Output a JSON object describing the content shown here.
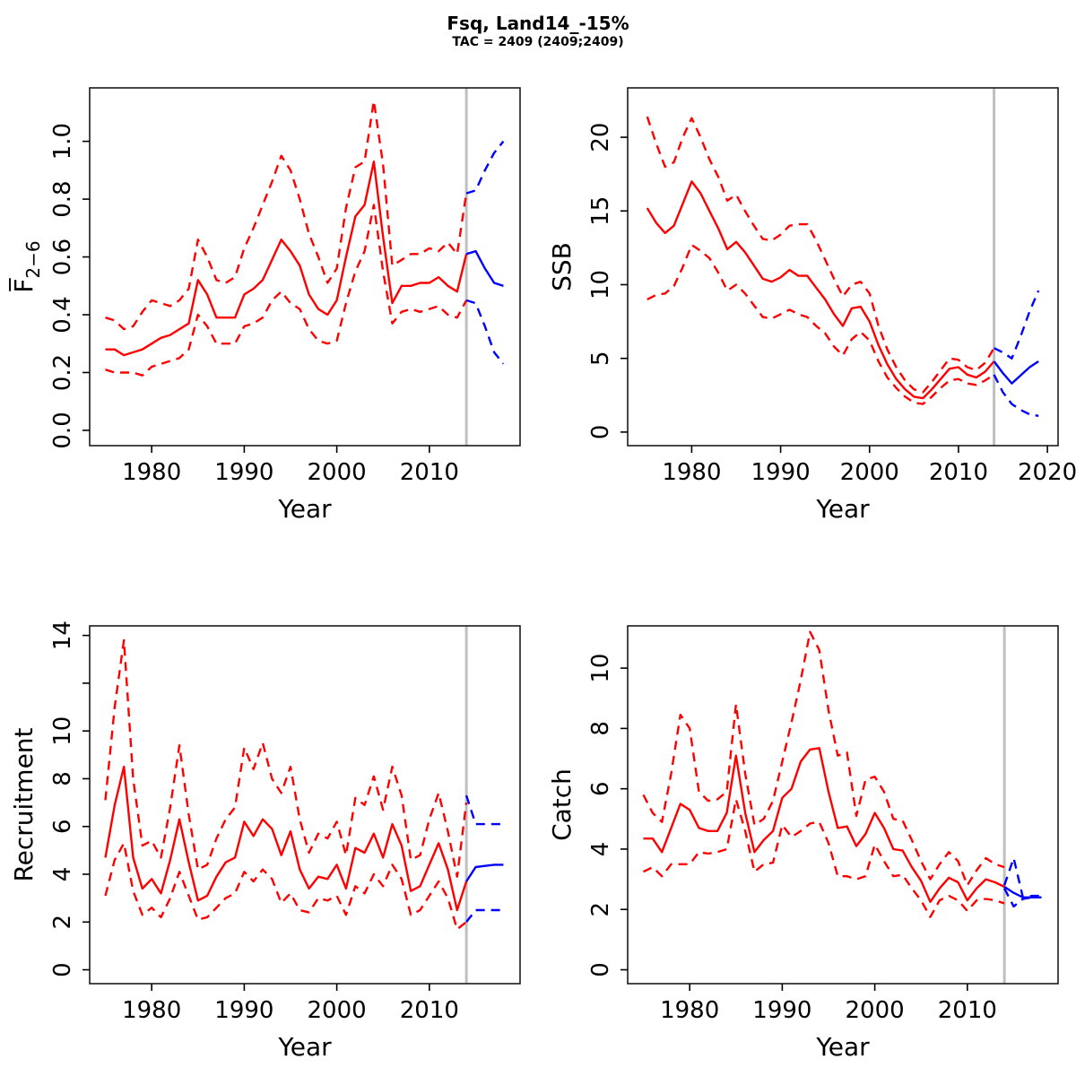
{
  "header": {
    "title": "Fsq, Land14_-15%",
    "subtitle": "TAC = 2409 (2409;2409)"
  },
  "colors": {
    "historical": "#FF0000",
    "projection": "#0000FF",
    "divider": "#BFBFBF",
    "axis": "#000000",
    "box": "#1A1A1A"
  },
  "chart_data": [
    {
      "id": "f",
      "type": "line",
      "ylabel": "F̅2−6",
      "ylabel_main": "F̅",
      "ylabel_sub": "2−6",
      "xlabel": "Year",
      "xlim": [
        1973.3,
        2019.8
      ],
      "ylim": [
        -0.053,
        1.185
      ],
      "xticks": [
        1980,
        1990,
        2000,
        2010
      ],
      "yticks": [
        {
          "v": 0.0,
          "label": "0.0"
        },
        {
          "v": 0.2,
          "label": "0.2"
        },
        {
          "v": 0.4,
          "label": "0.4"
        },
        {
          "v": 0.6,
          "label": "0.6"
        },
        {
          "v": 0.8,
          "label": "0.8"
        },
        {
          "v": 1.0,
          "label": "1.0"
        }
      ],
      "divider_year": 2014,
      "series": [
        {
          "name": "median-historical",
          "color": "historical",
          "dash": false,
          "year_start": 1975,
          "values": [
            0.28,
            0.28,
            0.26,
            0.27,
            0.28,
            0.3,
            0.32,
            0.33,
            0.35,
            0.37,
            0.52,
            0.47,
            0.39,
            0.39,
            0.39,
            0.47,
            0.49,
            0.52,
            0.59,
            0.66,
            0.62,
            0.57,
            0.47,
            0.42,
            0.4,
            0.45,
            0.6,
            0.74,
            0.78,
            0.93,
            0.67,
            0.44,
            0.5,
            0.5,
            0.51,
            0.51,
            0.53,
            0.5,
            0.48,
            0.61
          ]
        },
        {
          "name": "ci-upper-historical",
          "color": "historical",
          "dash": true,
          "year_start": 1975,
          "values": [
            0.39,
            0.38,
            0.35,
            0.36,
            0.41,
            0.45,
            0.44,
            0.43,
            0.45,
            0.49,
            0.66,
            0.6,
            0.52,
            0.51,
            0.53,
            0.63,
            0.7,
            0.78,
            0.86,
            0.95,
            0.9,
            0.8,
            0.68,
            0.6,
            0.51,
            0.56,
            0.77,
            0.91,
            0.93,
            1.14,
            0.92,
            0.57,
            0.59,
            0.61,
            0.61,
            0.63,
            0.62,
            0.65,
            0.61,
            0.82
          ]
        },
        {
          "name": "ci-lower-historical",
          "color": "historical",
          "dash": true,
          "year_start": 1975,
          "values": [
            0.21,
            0.2,
            0.2,
            0.2,
            0.19,
            0.22,
            0.23,
            0.24,
            0.25,
            0.28,
            0.4,
            0.36,
            0.3,
            0.3,
            0.3,
            0.36,
            0.37,
            0.39,
            0.45,
            0.48,
            0.44,
            0.42,
            0.35,
            0.31,
            0.3,
            0.31,
            0.44,
            0.55,
            0.62,
            0.78,
            0.55,
            0.37,
            0.41,
            0.42,
            0.41,
            0.42,
            0.43,
            0.4,
            0.39,
            0.45
          ]
        },
        {
          "name": "median-projection",
          "color": "projection",
          "dash": false,
          "year_start": 2014,
          "values": [
            0.61,
            0.62,
            0.56,
            0.51,
            0.5
          ]
        },
        {
          "name": "ci-upper-projection",
          "color": "projection",
          "dash": true,
          "year_start": 2014,
          "values": [
            0.82,
            0.83,
            0.9,
            0.96,
            1.0
          ]
        },
        {
          "name": "ci-lower-projection",
          "color": "projection",
          "dash": true,
          "year_start": 2014,
          "values": [
            0.45,
            0.44,
            0.36,
            0.27,
            0.23
          ]
        }
      ]
    },
    {
      "id": "ssb",
      "type": "line",
      "ylabel": "SSB",
      "xlabel": "Year",
      "xlim": [
        1972.8,
        2021.2
      ],
      "ylim": [
        -0.92,
        23.35
      ],
      "xticks": [
        1980,
        1990,
        2000,
        2010,
        2020
      ],
      "yticks": [
        {
          "v": 0,
          "label": "0"
        },
        {
          "v": 5,
          "label": "5"
        },
        {
          "v": 10,
          "label": "10"
        },
        {
          "v": 15,
          "label": "15"
        },
        {
          "v": 20,
          "label": "20"
        }
      ],
      "divider_year": 2014,
      "series": [
        {
          "name": "median-historical",
          "color": "historical",
          "dash": false,
          "year_start": 1975,
          "values": [
            15.2,
            14.2,
            13.5,
            14.0,
            15.5,
            17.0,
            16.2,
            15.0,
            13.8,
            12.4,
            12.9,
            12.2,
            11.3,
            10.4,
            10.2,
            10.5,
            11.0,
            10.6,
            10.6,
            9.8,
            9.0,
            8.0,
            7.2,
            8.4,
            8.5,
            7.5,
            5.9,
            4.6,
            3.6,
            2.9,
            2.4,
            2.3,
            2.9,
            3.6,
            4.3,
            4.4,
            3.9,
            3.7,
            4.1,
            4.8
          ]
        },
        {
          "name": "ci-upper-historical",
          "color": "historical",
          "dash": true,
          "year_start": 1975,
          "values": [
            21.4,
            19.6,
            18.0,
            18.3,
            20.0,
            21.3,
            20.0,
            18.5,
            17.3,
            15.7,
            16.1,
            15.0,
            14.0,
            13.1,
            13.0,
            13.4,
            14.0,
            14.1,
            14.1,
            13.0,
            11.7,
            10.4,
            9.2,
            10.0,
            10.2,
            9.4,
            7.2,
            5.6,
            4.4,
            3.5,
            2.9,
            2.7,
            3.4,
            4.2,
            5.0,
            4.9,
            4.4,
            4.2,
            4.7,
            5.7
          ]
        },
        {
          "name": "ci-lower-historical",
          "color": "historical",
          "dash": true,
          "year_start": 1975,
          "values": [
            9.0,
            9.3,
            9.4,
            9.9,
            11.2,
            12.7,
            12.3,
            11.8,
            10.8,
            9.6,
            10.0,
            9.4,
            8.6,
            7.8,
            7.7,
            8.0,
            8.3,
            8.0,
            7.8,
            7.2,
            6.7,
            5.8,
            5.2,
            6.3,
            6.8,
            6.2,
            4.8,
            3.7,
            3.0,
            2.4,
            2.0,
            1.9,
            2.4,
            3.0,
            3.5,
            3.6,
            3.3,
            3.2,
            3.5,
            3.9
          ]
        },
        {
          "name": "median-projection",
          "color": "projection",
          "dash": false,
          "year_start": 2014,
          "values": [
            4.8,
            4.0,
            3.3,
            3.85,
            4.4,
            4.8
          ]
        },
        {
          "name": "ci-upper-projection",
          "color": "projection",
          "dash": true,
          "year_start": 2014,
          "values": [
            5.7,
            5.4,
            5.0,
            6.5,
            8.2,
            9.6
          ]
        },
        {
          "name": "ci-lower-projection",
          "color": "projection",
          "dash": true,
          "year_start": 2014,
          "values": [
            3.9,
            2.7,
            1.9,
            1.5,
            1.2,
            1.1
          ]
        }
      ]
    },
    {
      "id": "recruitment",
      "type": "line",
      "ylabel": "Recruitment",
      "xlabel": "Year",
      "xlim": [
        1973.3,
        2019.8
      ],
      "ylim": [
        -0.58,
        14.4
      ],
      "xticks": [
        1980,
        1990,
        2000,
        2010
      ],
      "yticks": [
        {
          "v": 0,
          "label": "0"
        },
        {
          "v": 2,
          "label": "2"
        },
        {
          "v": 4,
          "label": "4"
        },
        {
          "v": 6,
          "label": "6"
        },
        {
          "v": 8,
          "label": "8"
        },
        {
          "v": 10,
          "label": "10"
        },
        {
          "v": 12,
          "label": ""
        },
        {
          "v": 14,
          "label": "14"
        }
      ],
      "divider_year": 2014,
      "series": [
        {
          "name": "median-historical",
          "color": "historical",
          "dash": false,
          "year_start": 1975,
          "values": [
            4.7,
            6.9,
            8.5,
            4.7,
            3.4,
            3.8,
            3.2,
            4.6,
            6.3,
            4.5,
            2.9,
            3.1,
            3.9,
            4.5,
            4.7,
            6.2,
            5.6,
            6.3,
            5.9,
            4.8,
            5.8,
            4.2,
            3.4,
            3.9,
            3.8,
            4.4,
            3.4,
            5.1,
            4.9,
            5.7,
            4.7,
            6.1,
            5.2,
            3.3,
            3.5,
            4.4,
            5.3,
            4.2,
            2.5,
            3.7
          ]
        },
        {
          "name": "ci-upper-historical",
          "color": "historical",
          "dash": true,
          "year_start": 1975,
          "values": [
            7.1,
            11.0,
            13.8,
            8.0,
            5.2,
            5.4,
            4.7,
            6.8,
            9.4,
            6.5,
            4.2,
            4.4,
            5.5,
            6.3,
            6.8,
            9.3,
            8.4,
            9.5,
            8.0,
            7.4,
            8.5,
            6.3,
            4.9,
            5.7,
            5.5,
            6.2,
            4.8,
            7.2,
            6.9,
            8.1,
            6.7,
            8.5,
            7.3,
            4.6,
            4.8,
            6.3,
            7.4,
            5.8,
            3.9,
            7.0
          ]
        },
        {
          "name": "ci-lower-historical",
          "color": "historical",
          "dash": true,
          "year_start": 1975,
          "values": [
            3.1,
            4.6,
            5.3,
            3.3,
            2.3,
            2.6,
            2.2,
            3.0,
            4.1,
            3.1,
            2.1,
            2.2,
            2.6,
            3.0,
            3.2,
            4.1,
            3.7,
            4.2,
            3.8,
            2.8,
            3.2,
            2.5,
            2.4,
            3.0,
            2.9,
            3.1,
            2.3,
            3.5,
            3.2,
            4.0,
            3.5,
            4.4,
            3.8,
            2.3,
            2.5,
            3.1,
            3.7,
            3.0,
            1.7,
            2.0
          ]
        },
        {
          "name": "median-projection",
          "color": "projection",
          "dash": false,
          "year_start": 2014,
          "values": [
            3.7,
            4.3,
            4.35,
            4.4,
            4.4
          ]
        },
        {
          "name": "ci-upper-projection",
          "color": "projection",
          "dash": true,
          "year_start": 2014,
          "values": [
            7.3,
            6.1,
            6.1,
            6.1,
            6.1
          ]
        },
        {
          "name": "ci-lower-projection",
          "color": "projection",
          "dash": true,
          "year_start": 2014,
          "values": [
            2.0,
            2.5,
            2.5,
            2.5,
            2.5
          ]
        }
      ]
    },
    {
      "id": "catch",
      "type": "line",
      "ylabel": "Catch",
      "xlabel": "Year",
      "xlim": [
        1973.3,
        2019.8
      ],
      "ylim": [
        -0.46,
        11.4
      ],
      "xticks": [
        1980,
        1990,
        2000,
        2010
      ],
      "yticks": [
        {
          "v": 0,
          "label": "0"
        },
        {
          "v": 2,
          "label": "2"
        },
        {
          "v": 4,
          "label": "4"
        },
        {
          "v": 6,
          "label": "6"
        },
        {
          "v": 8,
          "label": "8"
        },
        {
          "v": 10,
          "label": "10"
        }
      ],
      "divider_year": 2014,
      "series": [
        {
          "name": "median-historical",
          "color": "historical",
          "dash": false,
          "year_start": 1975,
          "values": [
            4.35,
            4.35,
            3.9,
            4.7,
            5.5,
            5.3,
            4.7,
            4.6,
            4.6,
            5.2,
            7.1,
            5.2,
            3.9,
            4.3,
            4.6,
            5.7,
            6.0,
            6.9,
            7.3,
            7.35,
            5.9,
            4.7,
            4.75,
            4.1,
            4.5,
            5.2,
            4.7,
            4.0,
            3.95,
            3.4,
            2.95,
            2.25,
            2.7,
            3.05,
            2.9,
            2.3,
            2.7,
            3.0,
            2.9,
            2.75
          ]
        },
        {
          "name": "ci-upper-historical",
          "color": "historical",
          "dash": true,
          "year_start": 1975,
          "values": [
            5.8,
            5.2,
            4.9,
            6.5,
            8.45,
            8.0,
            5.9,
            5.6,
            5.65,
            5.9,
            8.8,
            6.5,
            4.8,
            5.0,
            5.6,
            6.9,
            8.2,
            9.6,
            11.2,
            10.6,
            8.6,
            7.1,
            7.2,
            5.1,
            6.3,
            6.4,
            5.9,
            5.0,
            4.95,
            4.3,
            3.6,
            3.0,
            3.5,
            3.9,
            3.6,
            2.8,
            3.3,
            3.7,
            3.5,
            3.4
          ]
        },
        {
          "name": "ci-lower-historical",
          "color": "historical",
          "dash": true,
          "year_start": 1975,
          "values": [
            3.25,
            3.4,
            3.1,
            3.5,
            3.5,
            3.5,
            3.9,
            3.85,
            3.9,
            4.0,
            5.65,
            4.6,
            3.25,
            3.5,
            3.55,
            4.8,
            4.4,
            4.6,
            4.85,
            4.9,
            4.2,
            3.1,
            3.1,
            3.0,
            3.1,
            4.15,
            3.6,
            3.1,
            3.15,
            2.7,
            2.3,
            1.75,
            2.3,
            2.45,
            2.3,
            1.95,
            2.3,
            2.35,
            2.3,
            2.2
          ]
        },
        {
          "name": "median-projection",
          "color": "projection",
          "dash": false,
          "year_start": 2014,
          "values": [
            2.75,
            2.55,
            2.4,
            2.4,
            2.4
          ]
        },
        {
          "name": "ci-upper-projection",
          "color": "projection",
          "dash": true,
          "year_start": 2014,
          "values": [
            2.8,
            3.7,
            2.4,
            2.45,
            2.45
          ]
        },
        {
          "name": "ci-lower-projection",
          "color": "projection",
          "dash": true,
          "year_start": 2014,
          "values": [
            2.7,
            2.1,
            2.35,
            2.4,
            2.4
          ]
        }
      ]
    }
  ]
}
